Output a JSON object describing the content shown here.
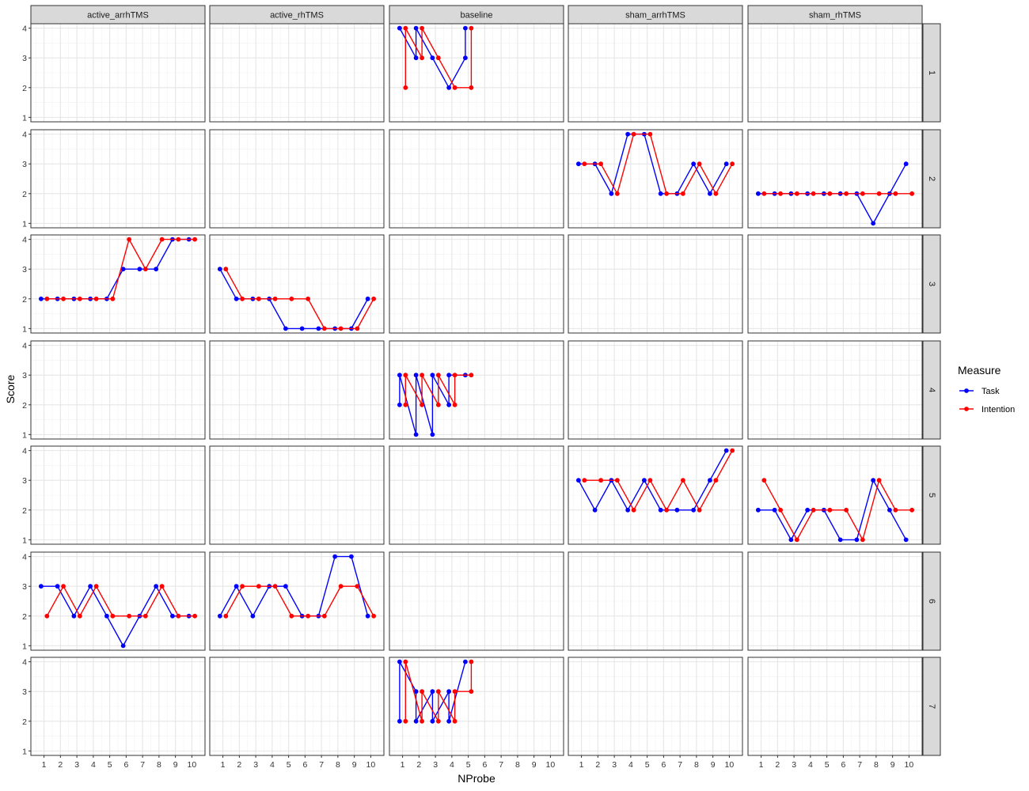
{
  "chart_data": {
    "type": "line",
    "xlabel": "NProbe",
    "ylabel": "Score",
    "x_ticks": [
      1,
      2,
      3,
      4,
      5,
      6,
      7,
      8,
      9,
      10
    ],
    "y_ticks": [
      1,
      2,
      3,
      4
    ],
    "xlim": [
      0.2,
      10.8
    ],
    "ylim": [
      0.85,
      4.15
    ],
    "grid": true,
    "legend": {
      "title": "Measure",
      "position": "right",
      "entries": [
        {
          "name": "Task",
          "color": "#0000ff"
        },
        {
          "name": "Intention",
          "color": "#ff0000"
        }
      ]
    },
    "col_facets": [
      "active_arrhTMS",
      "active_rhTMS",
      "baseline",
      "sham_arrhTMS",
      "sham_rhTMS"
    ],
    "row_facets": [
      "1",
      "2",
      "3",
      "4",
      "5",
      "6",
      "7"
    ],
    "panels": [
      {
        "col": "baseline",
        "row": "1",
        "task": [
          [
            1,
            4
          ],
          [
            1,
            4
          ],
          [
            2,
            3
          ],
          [
            2,
            4
          ],
          [
            3,
            3
          ],
          [
            4,
            2
          ],
          [
            5,
            3
          ],
          [
            5,
            4
          ]
        ],
        "intention": [
          [
            1,
            2
          ],
          [
            1,
            4
          ],
          [
            2,
            3
          ],
          [
            2,
            4
          ],
          [
            3,
            3
          ],
          [
            4,
            2
          ],
          [
            5,
            2
          ],
          [
            5,
            4
          ]
        ]
      },
      {
        "col": "sham_arrhTMS",
        "row": "2",
        "task": [
          [
            1,
            3
          ],
          [
            2,
            3
          ],
          [
            3,
            2
          ],
          [
            4,
            4
          ],
          [
            5,
            4
          ],
          [
            6,
            2
          ],
          [
            7,
            2
          ],
          [
            8,
            3
          ],
          [
            9,
            2
          ],
          [
            10,
            3
          ]
        ],
        "intention": [
          [
            1,
            3
          ],
          [
            2,
            3
          ],
          [
            3,
            2
          ],
          [
            4,
            4
          ],
          [
            5,
            4
          ],
          [
            6,
            2
          ],
          [
            7,
            2
          ],
          [
            8,
            3
          ],
          [
            9,
            2
          ],
          [
            10,
            3
          ]
        ]
      },
      {
        "col": "sham_rhTMS",
        "row": "2",
        "task": [
          [
            1,
            2
          ],
          [
            2,
            2
          ],
          [
            3,
            2
          ],
          [
            4,
            2
          ],
          [
            5,
            2
          ],
          [
            6,
            2
          ],
          [
            7,
            2
          ],
          [
            8,
            1
          ],
          [
            9,
            2
          ],
          [
            10,
            3
          ]
        ],
        "intention": [
          [
            1,
            2
          ],
          [
            2,
            2
          ],
          [
            3,
            2
          ],
          [
            4,
            2
          ],
          [
            5,
            2
          ],
          [
            6,
            2
          ],
          [
            7,
            2
          ],
          [
            8,
            2
          ],
          [
            9,
            2
          ],
          [
            10,
            2
          ]
        ]
      },
      {
        "col": "active_arrhTMS",
        "row": "3",
        "task": [
          [
            1,
            2
          ],
          [
            2,
            2
          ],
          [
            3,
            2
          ],
          [
            4,
            2
          ],
          [
            5,
            2
          ],
          [
            6,
            3
          ],
          [
            7,
            3
          ],
          [
            8,
            3
          ],
          [
            9,
            4
          ],
          [
            10,
            4
          ]
        ],
        "intention": [
          [
            1,
            2
          ],
          [
            2,
            2
          ],
          [
            3,
            2
          ],
          [
            4,
            2
          ],
          [
            5,
            2
          ],
          [
            6,
            4
          ],
          [
            7,
            3
          ],
          [
            8,
            4
          ],
          [
            9,
            4
          ],
          [
            10,
            4
          ]
        ]
      },
      {
        "col": "active_rhTMS",
        "row": "3",
        "task": [
          [
            1,
            3
          ],
          [
            2,
            2
          ],
          [
            3,
            2
          ],
          [
            4,
            2
          ],
          [
            5,
            1
          ],
          [
            6,
            1
          ],
          [
            7,
            1
          ],
          [
            8,
            1
          ],
          [
            9,
            1
          ],
          [
            10,
            2
          ]
        ],
        "intention": [
          [
            1,
            3
          ],
          [
            2,
            2
          ],
          [
            3,
            2
          ],
          [
            4,
            2
          ],
          [
            5,
            2
          ],
          [
            6,
            2
          ],
          [
            7,
            1
          ],
          [
            8,
            1
          ],
          [
            9,
            1
          ],
          [
            10,
            2
          ]
        ]
      },
      {
        "col": "baseline",
        "row": "4",
        "task": [
          [
            1,
            2
          ],
          [
            1,
            3
          ],
          [
            2,
            1
          ],
          [
            2,
            3
          ],
          [
            3,
            1
          ],
          [
            3,
            3
          ],
          [
            4,
            2
          ],
          [
            4,
            3
          ],
          [
            5,
            3
          ]
        ],
        "intention": [
          [
            1,
            2
          ],
          [
            1,
            3
          ],
          [
            2,
            2
          ],
          [
            2,
            3
          ],
          [
            3,
            2
          ],
          [
            3,
            3
          ],
          [
            4,
            2
          ],
          [
            4,
            3
          ],
          [
            5,
            3
          ]
        ]
      },
      {
        "col": "sham_arrhTMS",
        "row": "5",
        "task": [
          [
            1,
            3
          ],
          [
            2,
            2
          ],
          [
            3,
            3
          ],
          [
            4,
            2
          ],
          [
            5,
            3
          ],
          [
            6,
            2
          ],
          [
            7,
            2
          ],
          [
            8,
            2
          ],
          [
            9,
            3
          ],
          [
            10,
            4
          ]
        ],
        "intention": [
          [
            1,
            3
          ],
          [
            2,
            3
          ],
          [
            3,
            3
          ],
          [
            4,
            2
          ],
          [
            5,
            3
          ],
          [
            6,
            2
          ],
          [
            7,
            3
          ],
          [
            8,
            2
          ],
          [
            9,
            3
          ],
          [
            10,
            4
          ]
        ]
      },
      {
        "col": "sham_rhTMS",
        "row": "5",
        "task": [
          [
            1,
            2
          ],
          [
            2,
            2
          ],
          [
            3,
            1
          ],
          [
            4,
            2
          ],
          [
            5,
            2
          ],
          [
            6,
            1
          ],
          [
            7,
            1
          ],
          [
            8,
            3
          ],
          [
            9,
            2
          ],
          [
            10,
            1
          ]
        ],
        "intention": [
          [
            1,
            3
          ],
          [
            2,
            2
          ],
          [
            3,
            1
          ],
          [
            4,
            2
          ],
          [
            5,
            2
          ],
          [
            6,
            2
          ],
          [
            7,
            1
          ],
          [
            8,
            3
          ],
          [
            9,
            2
          ],
          [
            10,
            2
          ]
        ]
      },
      {
        "col": "active_arrhTMS",
        "row": "6",
        "task": [
          [
            1,
            3
          ],
          [
            2,
            3
          ],
          [
            3,
            2
          ],
          [
            4,
            3
          ],
          [
            5,
            2
          ],
          [
            6,
            1
          ],
          [
            7,
            2
          ],
          [
            8,
            3
          ],
          [
            9,
            2
          ],
          [
            10,
            2
          ]
        ],
        "intention": [
          [
            1,
            2
          ],
          [
            2,
            3
          ],
          [
            3,
            2
          ],
          [
            4,
            3
          ],
          [
            5,
            2
          ],
          [
            6,
            2
          ],
          [
            7,
            2
          ],
          [
            8,
            3
          ],
          [
            9,
            2
          ],
          [
            10,
            2
          ]
        ]
      },
      {
        "col": "active_rhTMS",
        "row": "6",
        "task": [
          [
            1,
            2
          ],
          [
            2,
            3
          ],
          [
            3,
            2
          ],
          [
            4,
            3
          ],
          [
            5,
            3
          ],
          [
            6,
            2
          ],
          [
            7,
            2
          ],
          [
            8,
            4
          ],
          [
            9,
            4
          ],
          [
            10,
            2
          ]
        ],
        "intention": [
          [
            1,
            2
          ],
          [
            2,
            3
          ],
          [
            3,
            3
          ],
          [
            4,
            3
          ],
          [
            5,
            2
          ],
          [
            6,
            2
          ],
          [
            7,
            2
          ],
          [
            8,
            3
          ],
          [
            9,
            3
          ],
          [
            10,
            2
          ]
        ]
      },
      {
        "col": "baseline",
        "row": "7",
        "task": [
          [
            1,
            2
          ],
          [
            1,
            4
          ],
          [
            2,
            3
          ],
          [
            2,
            2
          ],
          [
            3,
            3
          ],
          [
            3,
            2
          ],
          [
            4,
            3
          ],
          [
            4,
            2
          ],
          [
            5,
            4
          ]
        ],
        "intention": [
          [
            1,
            2
          ],
          [
            1,
            4
          ],
          [
            2,
            2
          ],
          [
            2,
            3
          ],
          [
            3,
            2
          ],
          [
            3,
            3
          ],
          [
            4,
            2
          ],
          [
            4,
            3
          ],
          [
            5,
            3
          ],
          [
            5,
            4
          ]
        ]
      }
    ]
  }
}
